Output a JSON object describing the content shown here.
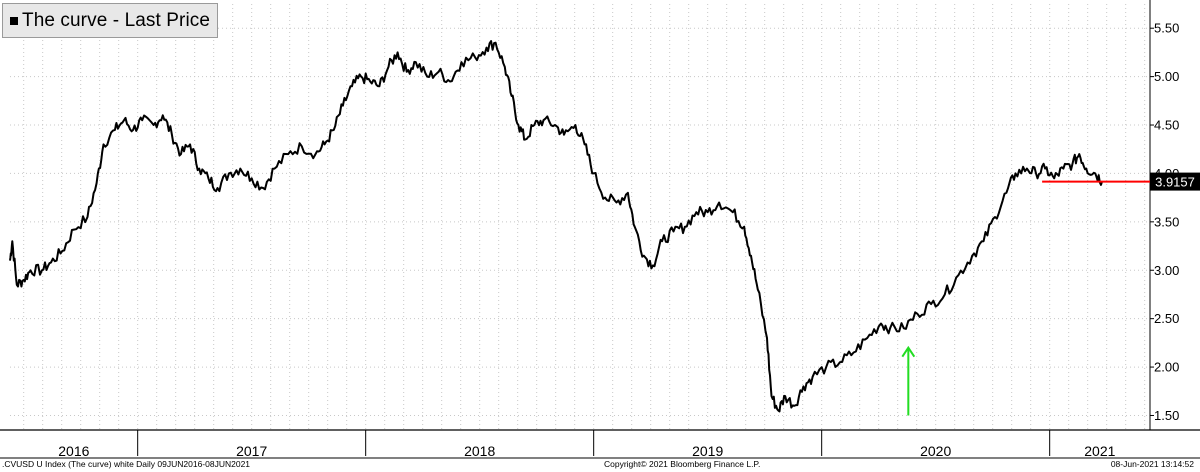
{
  "legend": {
    "label": "The curve - Last Price"
  },
  "footer": {
    "left": ".CVUSD U Index (The curve) white  Daily 09JUN2016-08JUN2021",
    "middle": "Copyright© 2021 Bloomberg Finance L.P.",
    "right": "08-Jun-2021 13:14:52"
  },
  "colors": {
    "line": "#000000",
    "last_price_marker": "#ff0000",
    "arrow": "#22dd22",
    "grid": "#c8c8c8"
  },
  "chart_data": {
    "type": "line",
    "title": "",
    "xlabel": "",
    "ylabel": "",
    "ylim": [
      1.35,
      5.75
    ],
    "xlim": [
      2016.44,
      2021.44
    ],
    "yticks": [
      1.5,
      2.0,
      2.5,
      3.0,
      3.5,
      4.0,
      4.5,
      5.0,
      5.5
    ],
    "ytick_labels": [
      "1.50",
      "2.00",
      "2.50",
      "3.00",
      "3.50",
      "4.00",
      "4.50",
      "5.00",
      "5.50"
    ],
    "x_year_labels": [
      "2016",
      "2017",
      "2018",
      "2019",
      "2020",
      "2021"
    ],
    "grid": true,
    "legend_position": "top-left",
    "last_value": 3.9157,
    "last_value_label": "3.9157",
    "annotations": [
      {
        "type": "arrow",
        "x": 2020.38,
        "y_from": 1.5,
        "y_to": 2.2,
        "color": "#22dd22"
      }
    ],
    "series": [
      {
        "name": "The curve - Last Price",
        "points": [
          [
            2016.44,
            3.1
          ],
          [
            2016.45,
            3.3
          ],
          [
            2016.47,
            2.85
          ],
          [
            2016.5,
            2.9
          ],
          [
            2016.53,
            3.0
          ],
          [
            2016.58,
            3.0
          ],
          [
            2016.62,
            3.08
          ],
          [
            2016.67,
            3.2
          ],
          [
            2016.72,
            3.42
          ],
          [
            2016.78,
            3.55
          ],
          [
            2016.82,
            3.9
          ],
          [
            2016.85,
            4.3
          ],
          [
            2016.9,
            4.45
          ],
          [
            2016.94,
            4.55
          ],
          [
            2016.98,
            4.45
          ],
          [
            2017.02,
            4.55
          ],
          [
            2017.07,
            4.5
          ],
          [
            2017.11,
            4.6
          ],
          [
            2017.15,
            4.4
          ],
          [
            2017.19,
            4.2
          ],
          [
            2017.23,
            4.3
          ],
          [
            2017.27,
            4.05
          ],
          [
            2017.31,
            3.95
          ],
          [
            2017.35,
            3.85
          ],
          [
            2017.4,
            4.0
          ],
          [
            2017.45,
            4.05
          ],
          [
            2017.5,
            3.95
          ],
          [
            2017.55,
            3.85
          ],
          [
            2017.6,
            4.05
          ],
          [
            2017.66,
            4.2
          ],
          [
            2017.72,
            4.28
          ],
          [
            2017.78,
            4.2
          ],
          [
            2017.82,
            4.3
          ],
          [
            2017.86,
            4.45
          ],
          [
            2017.9,
            4.7
          ],
          [
            2017.94,
            4.9
          ],
          [
            2017.98,
            5.0
          ],
          [
            2018.02,
            4.95
          ],
          [
            2018.06,
            4.9
          ],
          [
            2018.1,
            5.1
          ],
          [
            2018.14,
            5.25
          ],
          [
            2018.18,
            5.05
          ],
          [
            2018.22,
            5.15
          ],
          [
            2018.27,
            5.0
          ],
          [
            2018.32,
            5.05
          ],
          [
            2018.37,
            4.95
          ],
          [
            2018.42,
            5.15
          ],
          [
            2018.48,
            5.2
          ],
          [
            2018.53,
            5.3
          ],
          [
            2018.57,
            5.35
          ],
          [
            2018.61,
            5.1
          ],
          [
            2018.64,
            4.8
          ],
          [
            2018.67,
            4.5
          ],
          [
            2018.7,
            4.35
          ],
          [
            2018.74,
            4.5
          ],
          [
            2018.78,
            4.55
          ],
          [
            2018.83,
            4.5
          ],
          [
            2018.87,
            4.4
          ],
          [
            2018.92,
            4.5
          ],
          [
            2018.96,
            4.3
          ],
          [
            2019.0,
            4.0
          ],
          [
            2019.05,
            3.75
          ],
          [
            2019.1,
            3.7
          ],
          [
            2019.15,
            3.8
          ],
          [
            2019.18,
            3.45
          ],
          [
            2019.22,
            3.15
          ],
          [
            2019.26,
            3.05
          ],
          [
            2019.3,
            3.3
          ],
          [
            2019.35,
            3.4
          ],
          [
            2019.4,
            3.45
          ],
          [
            2019.45,
            3.6
          ],
          [
            2019.5,
            3.6
          ],
          [
            2019.55,
            3.7
          ],
          [
            2019.61,
            3.6
          ],
          [
            2019.66,
            3.45
          ],
          [
            2019.69,
            3.15
          ],
          [
            2019.72,
            2.8
          ],
          [
            2019.76,
            2.3
          ],
          [
            2019.78,
            1.7
          ],
          [
            2019.81,
            1.55
          ],
          [
            2019.84,
            1.7
          ],
          [
            2019.88,
            1.6
          ],
          [
            2019.92,
            1.8
          ],
          [
            2019.96,
            1.9
          ],
          [
            2020.02,
            2.0
          ],
          [
            2020.08,
            2.05
          ],
          [
            2020.14,
            2.15
          ],
          [
            2020.2,
            2.3
          ],
          [
            2020.26,
            2.45
          ],
          [
            2020.3,
            2.4
          ],
          [
            2020.36,
            2.4
          ],
          [
            2020.42,
            2.55
          ],
          [
            2020.48,
            2.65
          ],
          [
            2020.54,
            2.75
          ],
          [
            2020.6,
            2.95
          ],
          [
            2020.66,
            3.15
          ],
          [
            2020.71,
            3.3
          ],
          [
            2020.76,
            3.55
          ],
          [
            2020.81,
            3.8
          ],
          [
            2020.85,
            4.0
          ],
          [
            2020.9,
            4.05
          ],
          [
            2020.94,
            4.0
          ],
          [
            2020.98,
            4.05
          ],
          [
            2021.02,
            3.95
          ],
          [
            2021.06,
            4.05
          ],
          [
            2021.1,
            4.1
          ],
          [
            2021.13,
            4.2
          ],
          [
            2021.16,
            4.05
          ],
          [
            2021.2,
            4.0
          ],
          [
            2021.23,
            3.92
          ]
        ]
      }
    ]
  }
}
